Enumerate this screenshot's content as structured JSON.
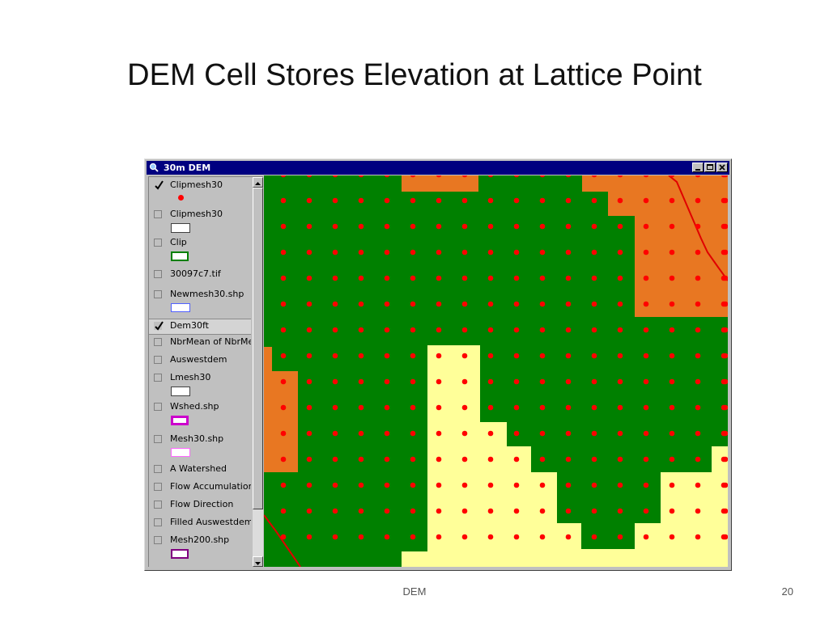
{
  "slide": {
    "title": "DEM Cell Stores Elevation at Lattice Point",
    "footer_text": "DEM",
    "page_number": "20"
  },
  "window": {
    "title": "30m DEM",
    "icon": "magnifier-icon",
    "controls": [
      "minimize-icon",
      "maximize-icon",
      "close-icon"
    ]
  },
  "legend": {
    "items": [
      {
        "label": "Clipmesh30",
        "checked": true,
        "symbol": "red-point"
      },
      {
        "label": "Clipmesh30",
        "checked": false,
        "symbol": "gray-box"
      },
      {
        "label": "Clip",
        "checked": false,
        "symbol": "green-box"
      },
      {
        "label": "30097c7.tif",
        "checked": false,
        "symbol": ""
      },
      {
        "label": "Newmesh30.shp",
        "checked": false,
        "symbol": "blue-box"
      },
      {
        "label": "Dem30ft",
        "checked": true,
        "symbol": "",
        "selected": true
      },
      {
        "label": "NbrMean of NbrMean",
        "checked": false,
        "symbol": ""
      },
      {
        "label": "Auswestdem",
        "checked": false,
        "symbol": ""
      },
      {
        "label": "Lmesh30",
        "checked": false,
        "symbol": "gray-box"
      },
      {
        "label": "Wshed.shp",
        "checked": false,
        "symbol": "magenta-box"
      },
      {
        "label": "Mesh30.shp",
        "checked": false,
        "symbol": "pink-box"
      },
      {
        "label": "A Watershed",
        "checked": false,
        "symbol": ""
      },
      {
        "label": "Flow Accumulation",
        "checked": false,
        "symbol": ""
      },
      {
        "label": "Flow Direction",
        "checked": false,
        "symbol": ""
      },
      {
        "label": "Filled Auswestdem",
        "checked": false,
        "symbol": ""
      },
      {
        "label": "Mesh200.shp",
        "checked": false,
        "symbol": "purple-box"
      }
    ]
  },
  "map": {
    "colors": {
      "low": "#008000",
      "mid": "#e87722",
      "high": "#ffff99",
      "lattice_point": "#ff0000",
      "stream": "#e00000"
    },
    "grid_columns": 18,
    "grid_rows": 15
  }
}
